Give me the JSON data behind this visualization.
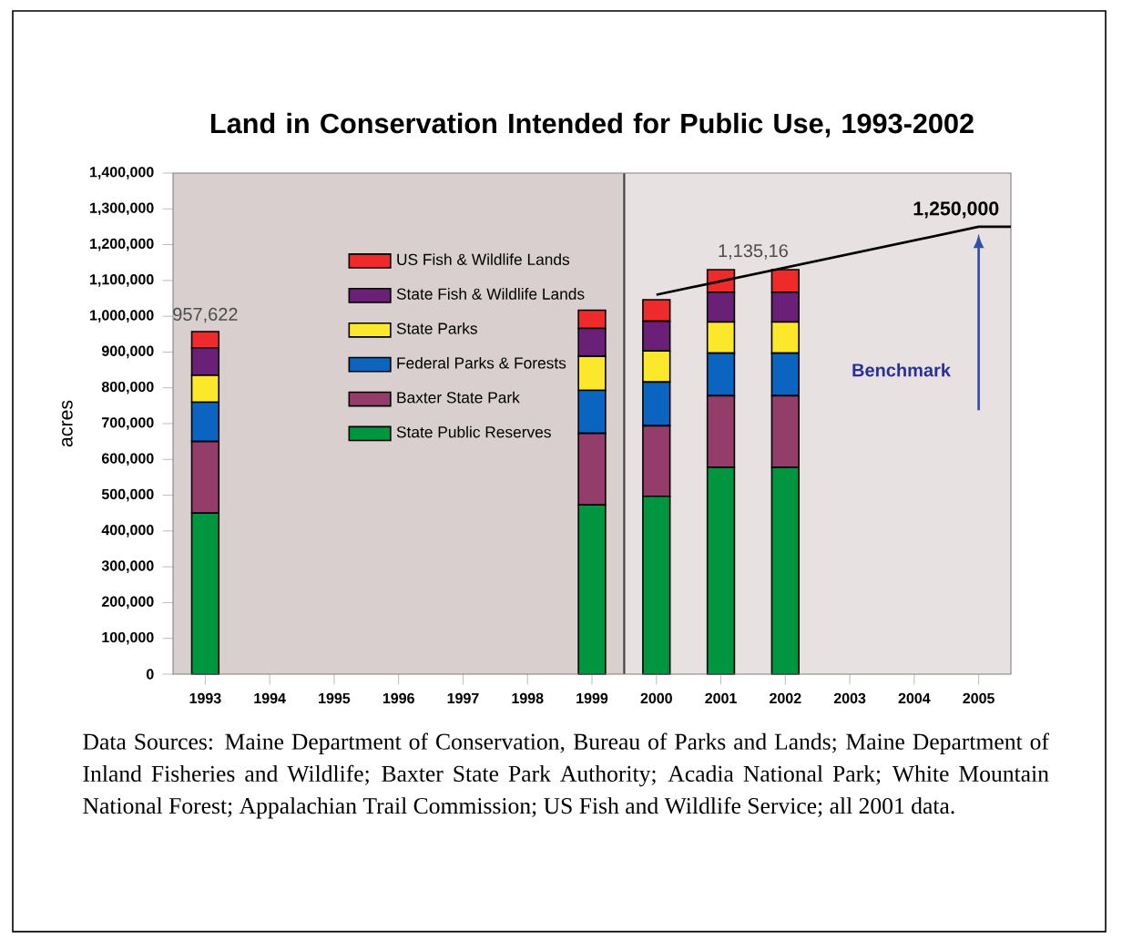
{
  "chart_data": {
    "type": "bar",
    "title": "Land in Conservation Intended for Public Use, 1993-2002",
    "ylabel": "acres",
    "stacked": true,
    "x": [
      1993,
      1999,
      2000,
      2001,
      2002
    ],
    "series": [
      {
        "name": "State Public Reserves",
        "color": "#00963f",
        "values": [
          450000,
          473000,
          497000,
          578000,
          578000
        ]
      },
      {
        "name": "Baxter State Park",
        "color": "#943d6b",
        "values": [
          200000,
          200000,
          197000,
          200000,
          200000
        ]
      },
      {
        "name": "Federal Parks & Forests",
        "color": "#0a64c0",
        "values": [
          110000,
          120000,
          122000,
          119000,
          119000
        ]
      },
      {
        "name": "State Parks",
        "color": "#fce82a",
        "values": [
          75000,
          95000,
          87000,
          87000,
          87000
        ]
      },
      {
        "name": "State Fish & Wildlife Lands",
        "color": "#6a2077",
        "values": [
          77000,
          78000,
          83000,
          83000,
          83000
        ]
      },
      {
        "name": "US Fish & Wildlife Lands",
        "color": "#ee2a2a",
        "values": [
          45000,
          51000,
          60000,
          63000,
          63000
        ]
      },
      {
        "type": "line",
        "color": "#000000",
        "x": [
          2000,
          2005,
          2005.5
        ],
        "values": [
          1060000,
          1250000,
          1250000
        ]
      }
    ],
    "xlim": [
      1992.5,
      2005.5
    ],
    "xticks": [
      1993,
      1994,
      1995,
      1996,
      1997,
      1998,
      1999,
      2000,
      2001,
      2002,
      2003,
      2004,
      2005
    ],
    "ylim": [
      0,
      1400000
    ],
    "yticks": [
      0,
      {
        "value": 100000,
        "label": "100,000"
      },
      {
        "value": 200000,
        "label": "200,000"
      },
      {
        "value": 300000,
        "label": "300,000"
      },
      {
        "value": 400000,
        "label": "400,000"
      },
      {
        "value": 500000,
        "label": "500,000"
      },
      {
        "value": 600000,
        "label": "600,000"
      },
      {
        "value": 700000,
        "label": "700,000"
      },
      {
        "value": 800000,
        "label": "800,000"
      },
      {
        "value": 900000,
        "label": "900,000"
      },
      {
        "value": 1000000,
        "label": "1,000,000"
      },
      {
        "value": 1100000,
        "label": "1,100,000"
      },
      {
        "value": 1200000,
        "label": "1,200,000"
      },
      {
        "value": 1300000,
        "label": "1,300,000"
      },
      {
        "value": 1400000,
        "label": "1,400,000"
      }
    ],
    "bands": [
      {
        "axis": "x",
        "from": 1992.5,
        "to": 1999.5,
        "color": "#d9cfcf"
      },
      {
        "axis": "x",
        "from": 1999.5,
        "to": 2005.5,
        "color": "#e8e1e1"
      }
    ],
    "ref_lines": [
      {
        "axis": "x",
        "value": 1999.5,
        "color": "#404040"
      }
    ],
    "annotations": [
      {
        "text": "957,622",
        "x": 1993,
        "y": 957622
      },
      {
        "text": "1,135,16",
        "x": 2001.5,
        "y": 1135000
      },
      {
        "text": "1,250,000",
        "x": 2005,
        "y": 1250000
      },
      "Benchmark",
      "Data Sources: Maine Department of Conservation, Bureau of Parks and Lands; Maine Department of Inland Fisheries and Wildlife; Baxter State Park Authority; Acadia National Park; White Mountain National Forest; Appalachian Trail Commission; US Fish and Wildlife Service; all 2001 data."
    ],
    "legend": "top left",
    "grid": false
  }
}
